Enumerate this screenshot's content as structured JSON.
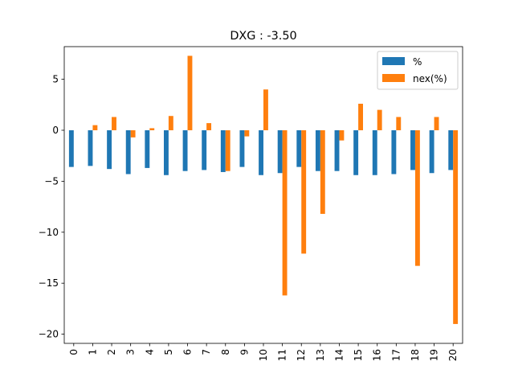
{
  "chart_data": {
    "type": "bar",
    "title": "DXG : -3.50",
    "xlabel": "",
    "ylabel": "",
    "categories": [
      "0",
      "1",
      "2",
      "3",
      "4",
      "5",
      "6",
      "7",
      "8",
      "9",
      "10",
      "11",
      "12",
      "13",
      "14",
      "15",
      "16",
      "17",
      "18",
      "19",
      "20"
    ],
    "series": [
      {
        "name": "%",
        "color": "#1f77b4",
        "values": [
          -3.6,
          -3.5,
          -3.8,
          -4.3,
          -3.7,
          -4.4,
          -4.0,
          -3.9,
          -4.1,
          -3.6,
          -4.4,
          -4.2,
          -3.6,
          -4.0,
          -4.0,
          -4.4,
          -4.4,
          -4.3,
          -3.9,
          -4.2,
          -3.9
        ]
      },
      {
        "name": "nex(%)",
        "color": "#ff7f0e",
        "values": [
          0.0,
          0.5,
          1.3,
          -0.7,
          0.2,
          1.4,
          7.3,
          0.7,
          -4.0,
          -0.6,
          4.0,
          -16.2,
          -12.1,
          -8.2,
          -1.0,
          2.6,
          2.0,
          1.3,
          -13.3,
          1.3,
          -19.0
        ]
      }
    ],
    "ylim": [
      -20.9,
      8.2
    ],
    "yticks": [
      5,
      0,
      -5,
      -10,
      -15,
      -20
    ],
    "ytick_labels": [
      "5",
      "0",
      "−5",
      "−10",
      "−15",
      "−20"
    ],
    "grid": false,
    "legend_position": "top-right"
  }
}
